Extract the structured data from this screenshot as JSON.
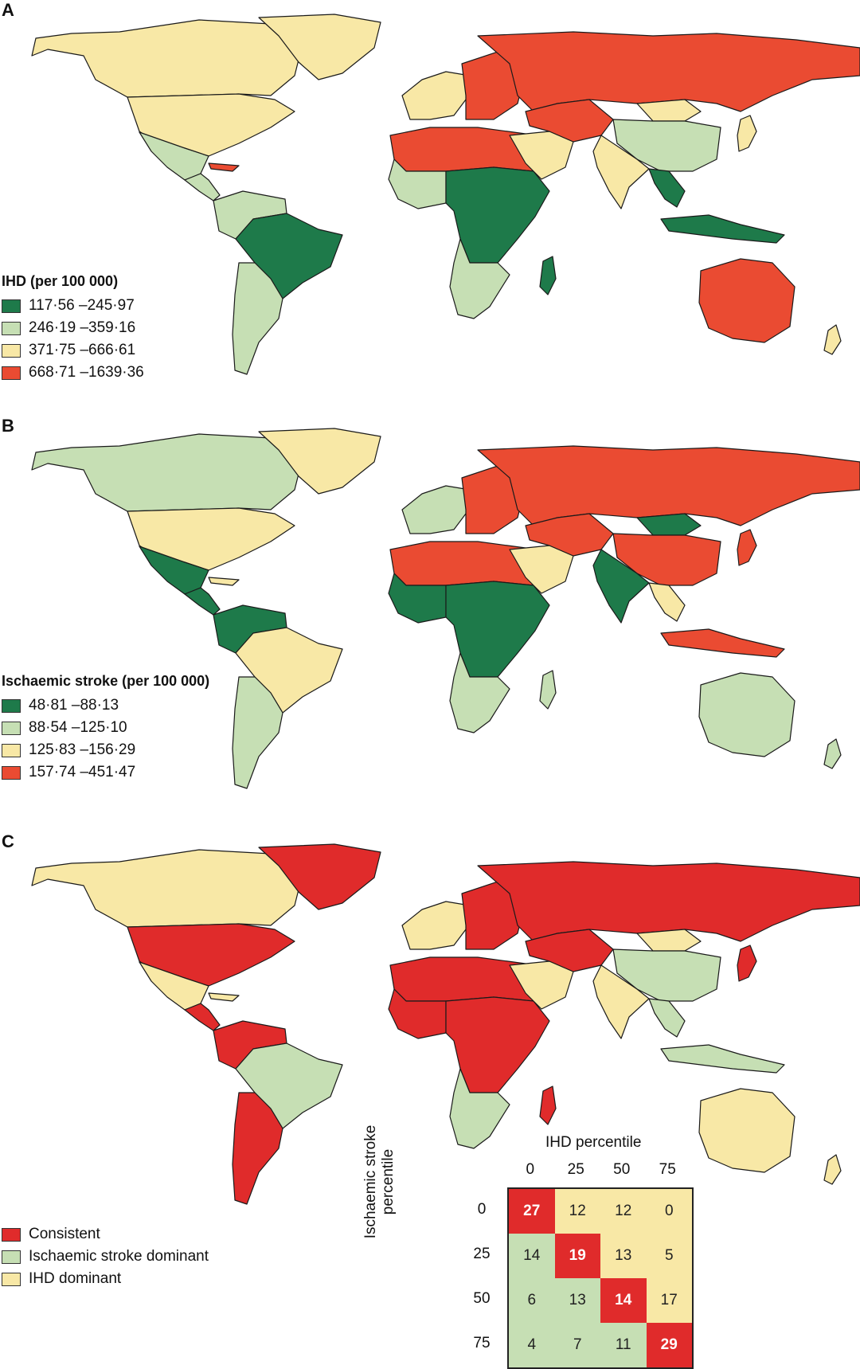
{
  "colors": {
    "dark_green": "#1e7a4a",
    "light_green": "#c6dfb4",
    "yellow": "#f8e8a6",
    "orange_red": "#ea4b32",
    "red": "#e02b2b"
  },
  "panel_a": {
    "label": "A",
    "legend_title": "IHD (per 100 000)",
    "legend": [
      {
        "text": "117·56 –245·97",
        "color": "#1e7a4a"
      },
      {
        "text": "246·19 –359·16",
        "color": "#c6dfb4"
      },
      {
        "text": "371·75 –666·61",
        "color": "#f8e8a6"
      },
      {
        "text": "668·71 –1639·36",
        "color": "#ea4b32"
      }
    ]
  },
  "panel_b": {
    "label": "B",
    "legend_title": "Ischaemic stroke (per 100 000)",
    "legend": [
      {
        "text": "48·81 –88·13",
        "color": "#1e7a4a"
      },
      {
        "text": "88·54 –125·10",
        "color": "#c6dfb4"
      },
      {
        "text": "125·83 –156·29",
        "color": "#f8e8a6"
      },
      {
        "text": "157·74 –451·47",
        "color": "#ea4b32"
      }
    ]
  },
  "panel_c": {
    "label": "C",
    "legend": [
      {
        "text": "Consistent",
        "color": "#e02b2b"
      },
      {
        "text": "Ischaemic stroke dominant",
        "color": "#c6dfb4"
      },
      {
        "text": "IHD dominant",
        "color": "#f8e8a6"
      }
    ],
    "matrix": {
      "x_title": "IHD percentile",
      "y_title": "Ischaemic stroke percentile",
      "x_ticks": [
        "0",
        "25",
        "50",
        "75"
      ],
      "y_ticks": [
        "0",
        "25",
        "50",
        "75"
      ],
      "values": [
        [
          27,
          12,
          12,
          0
        ],
        [
          14,
          19,
          13,
          5
        ],
        [
          6,
          13,
          14,
          17
        ],
        [
          4,
          7,
          11,
          29
        ]
      ]
    }
  },
  "map_a_regions": {
    "north_america_north": "#f8e8a6",
    "usa": "#f8e8a6",
    "greenland": "#f8e8a6",
    "mexico": "#c6dfb4",
    "central_america": "#c6dfb4",
    "cuba": "#ea4b32",
    "south_america_north": "#c6dfb4",
    "brazil": "#1e7a4a",
    "south_america_south": "#c6dfb4",
    "europe_west": "#f8e8a6",
    "europe_east": "#ea4b32",
    "russia": "#ea4b32",
    "north_africa": "#ea4b32",
    "west_africa": "#c6dfb4",
    "central_africa": "#1e7a4a",
    "southern_africa": "#c6dfb4",
    "madagascar": "#1e7a4a",
    "middle_east": "#f8e8a6",
    "central_asia": "#ea4b32",
    "china": "#c6dfb4",
    "mongolia": "#f8e8a6",
    "india": "#f8e8a6",
    "southeast_asia": "#1e7a4a",
    "indonesia": "#1e7a4a",
    "japan": "#f8e8a6",
    "australia": "#ea4b32",
    "new_zealand": "#f8e8a6"
  },
  "map_b_regions": {
    "north_america_north": "#c6dfb4",
    "usa": "#f8e8a6",
    "greenland": "#f8e8a6",
    "mexico": "#1e7a4a",
    "central_america": "#1e7a4a",
    "cuba": "#f8e8a6",
    "south_america_north": "#1e7a4a",
    "brazil": "#f8e8a6",
    "south_america_south": "#c6dfb4",
    "europe_west": "#c6dfb4",
    "europe_east": "#ea4b32",
    "russia": "#ea4b32",
    "north_africa": "#ea4b32",
    "west_africa": "#1e7a4a",
    "central_africa": "#1e7a4a",
    "southern_africa": "#c6dfb4",
    "madagascar": "#c6dfb4",
    "middle_east": "#f8e8a6",
    "central_asia": "#ea4b32",
    "china": "#ea4b32",
    "mongolia": "#1e7a4a",
    "india": "#1e7a4a",
    "southeast_asia": "#f8e8a6",
    "indonesia": "#ea4b32",
    "japan": "#ea4b32",
    "australia": "#c6dfb4",
    "new_zealand": "#c6dfb4"
  },
  "map_c_regions": {
    "north_america_north": "#f8e8a6",
    "usa": "#e02b2b",
    "greenland": "#e02b2b",
    "mexico": "#f8e8a6",
    "central_america": "#e02b2b",
    "cuba": "#f8e8a6",
    "south_america_north": "#e02b2b",
    "brazil": "#c6dfb4",
    "south_america_south": "#e02b2b",
    "europe_west": "#f8e8a6",
    "europe_east": "#e02b2b",
    "russia": "#e02b2b",
    "north_africa": "#e02b2b",
    "west_africa": "#e02b2b",
    "central_africa": "#e02b2b",
    "southern_africa": "#c6dfb4",
    "madagascar": "#e02b2b",
    "middle_east": "#f8e8a6",
    "central_asia": "#e02b2b",
    "china": "#c6dfb4",
    "mongolia": "#f8e8a6",
    "india": "#f8e8a6",
    "southeast_asia": "#c6dfb4",
    "indonesia": "#c6dfb4",
    "japan": "#e02b2b",
    "australia": "#f8e8a6",
    "new_zealand": "#f8e8a6"
  }
}
